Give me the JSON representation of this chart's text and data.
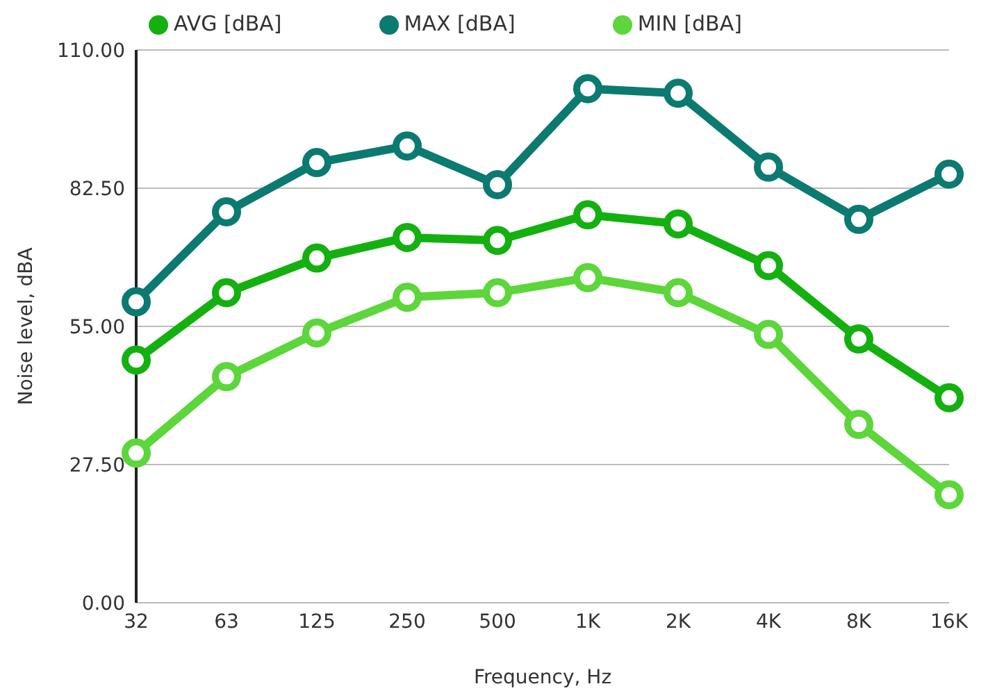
{
  "chart_data": {
    "type": "line",
    "xlabel": "Frequency, Hz",
    "ylabel": "Noise level, dBA",
    "categories": [
      "32",
      "63",
      "125",
      "250",
      "500",
      "1K",
      "2K",
      "4K",
      "8K",
      "16K"
    ],
    "series": [
      {
        "name": "AVG [dBA]",
        "color": "#14b010",
        "values": [
          48.3,
          61.7,
          68.6,
          72.7,
          72.1,
          77.2,
          75.4,
          67.1,
          52.5,
          40.8
        ]
      },
      {
        "name": "MAX [dBA]",
        "color": "#0b7a70",
        "values": [
          59.9,
          77.8,
          87.6,
          90.9,
          83.2,
          102.3,
          101.4,
          86.7,
          76.3,
          85.3
        ]
      },
      {
        "name": "MIN [dBA]",
        "color": "#5cd63a",
        "values": [
          29.8,
          45.0,
          53.7,
          60.8,
          61.7,
          64.7,
          61.7,
          53.4,
          35.5,
          21.5
        ]
      }
    ],
    "ylim": [
      0,
      110
    ],
    "yticks": [
      {
        "value": 0,
        "label": "0.00"
      },
      {
        "value": 27.5,
        "label": "27.50"
      },
      {
        "value": 55,
        "label": "55.00"
      },
      {
        "value": 82.5,
        "label": "82.50"
      },
      {
        "value": 110,
        "label": "110.00"
      }
    ],
    "grid": "y",
    "legend": "top",
    "marker": "circle",
    "line_style": "solid"
  }
}
